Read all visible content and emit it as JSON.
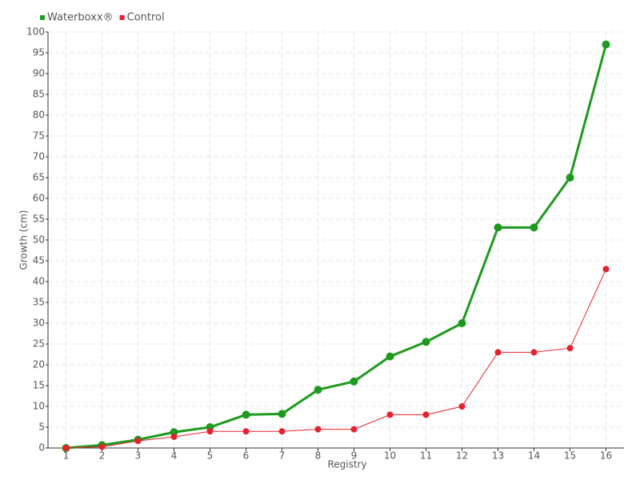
{
  "chart_data": {
    "type": "line",
    "x_label": "Registry",
    "y_label": "Growth (cm)",
    "categories": [
      "1",
      "2",
      "3",
      "4",
      "5",
      "6",
      "7",
      "8",
      "9",
      "10",
      "11",
      "12",
      "13",
      "14",
      "15",
      "16"
    ],
    "series": [
      {
        "name": "Waterboxx®",
        "color": "#1e9a1e",
        "values": [
          0,
          0.7,
          2,
          3.8,
          5,
          8,
          8.2,
          14,
          16,
          22,
          25.5,
          30,
          53,
          53,
          65,
          97
        ]
      },
      {
        "name": "Control",
        "color": "#e8212f",
        "values": [
          0,
          0.3,
          1.7,
          2.7,
          4,
          4,
          4,
          4.5,
          4.5,
          8,
          8,
          10,
          23,
          23,
          24,
          43
        ]
      }
    ],
    "ylim": [
      0,
      100
    ],
    "yticks": [
      0,
      5,
      10,
      15,
      20,
      25,
      30,
      35,
      40,
      45,
      50,
      55,
      60,
      65,
      70,
      75,
      80,
      85,
      90,
      95,
      100
    ],
    "grid": true,
    "legend": "top-left"
  }
}
